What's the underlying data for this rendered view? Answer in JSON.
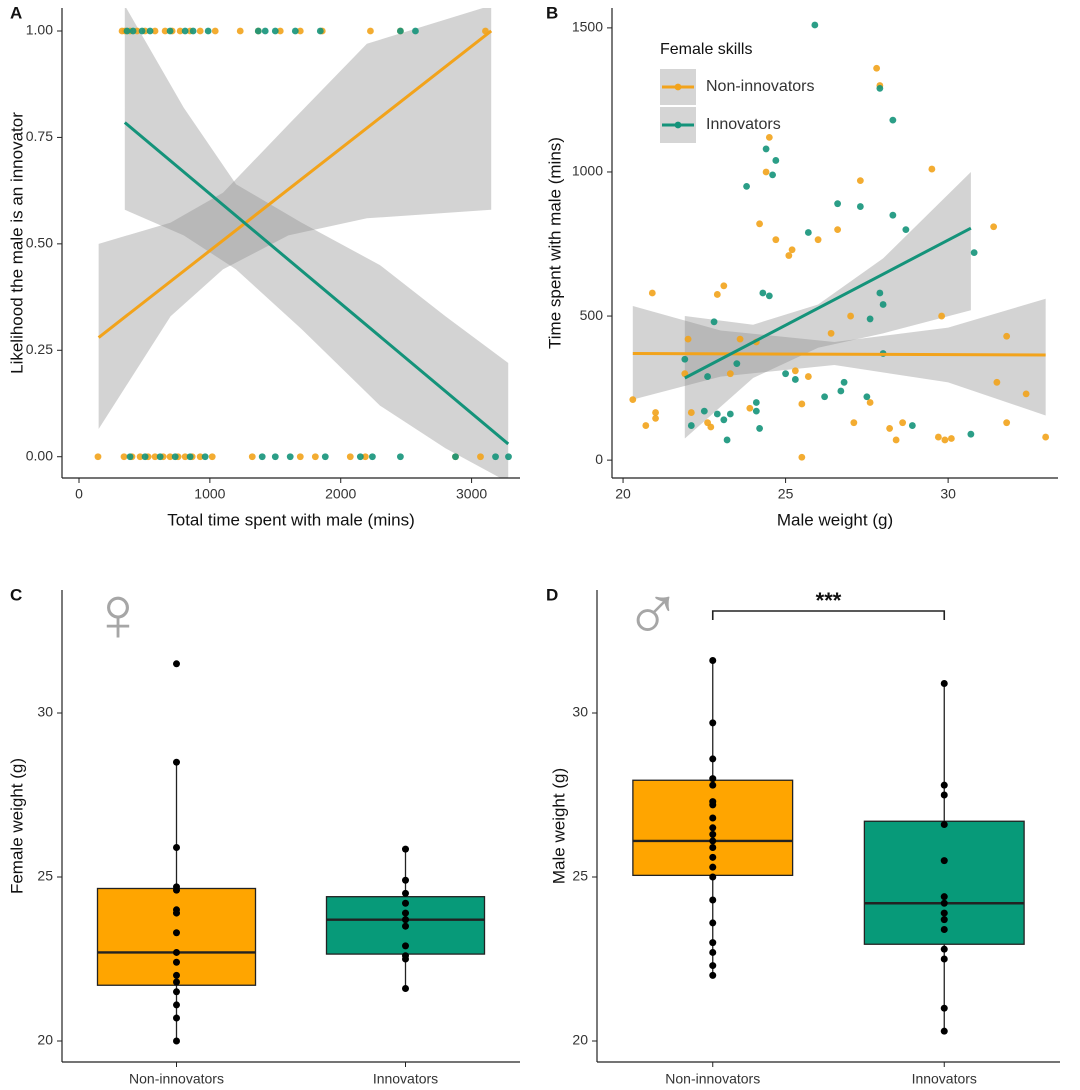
{
  "chart_data": [
    {
      "type": "scatter_fit",
      "panel_label": "A",
      "x_label": "Total time spent with male (mins)",
      "y_label": "Likelihood the male is an innovator",
      "xlim": [
        -130,
        3370
      ],
      "xticks": [
        0,
        1000,
        2000,
        3000
      ],
      "ylim": [
        -0.05,
        1.054
      ],
      "yticks": [
        {
          "value": 0,
          "label": "0.00"
        },
        {
          "value": 0.25,
          "label": "0.25"
        },
        {
          "value": 0.5,
          "label": "0.50"
        },
        {
          "value": 0.75,
          "label": "0.75"
        },
        {
          "value": 1,
          "label": "1.00"
        }
      ],
      "series": [
        {
          "color": "#f2a31b",
          "x": [
            329,
            352,
            390,
            444,
            505,
            581,
            658,
            712,
            773,
            849,
            926,
            1041,
            1232,
            1370,
            1538,
            1691,
            1859,
            2227,
            2456,
            3106,
            145,
            344,
            405,
            467,
            528,
            581,
            643,
            696,
            757,
            811,
            865,
            926,
            1018,
            1324,
            1691,
            1806,
            2073,
            2188,
            2877,
            3068
          ],
          "values": [
            1,
            1,
            1,
            1,
            1,
            1,
            1,
            1,
            1,
            1,
            1,
            1,
            1,
            1,
            1,
            1,
            1,
            1,
            1,
            1,
            0,
            0,
            0,
            0,
            0,
            0,
            0,
            0,
            0,
            0,
            0,
            0,
            0,
            0,
            0,
            0,
            0,
            0,
            0,
            0
          ],
          "fit": {
            "x": [
              150,
              3150
            ],
            "values": [
              0.28,
              1.0
            ]
          },
          "band": {
            "x": [
              150,
              700,
              1100,
              1600,
              2200,
              3150
            ],
            "lower": [
              0.065,
              0.33,
              0.44,
              0.52,
              0.56,
              0.58
            ],
            "upper": [
              0.5,
              0.55,
              0.62,
              0.78,
              0.97,
              1.06
            ]
          }
        },
        {
          "color": "#14937a",
          "x": [
            367,
            413,
            482,
            543,
            696,
            811,
            872,
            987,
            1370,
            1423,
            1500,
            1653,
            1844,
            2456,
            2571,
            390,
            505,
            620,
            735,
            849,
            964,
            1400,
            1500,
            1614,
            1882,
            2150,
            2242,
            2456,
            2877,
            3183,
            3282
          ],
          "values": [
            1,
            1,
            1,
            1,
            1,
            1,
            1,
            1,
            1,
            1,
            1,
            1,
            1,
            1,
            1,
            0,
            0,
            0,
            0,
            0,
            0,
            0,
            0,
            0,
            0,
            0,
            0,
            0,
            0,
            0,
            0
          ],
          "fit": {
            "x": [
              350,
              3280
            ],
            "values": [
              0.785,
              0.03
            ]
          },
          "band": {
            "x": [
              350,
              800,
              1200,
              1700,
              2300,
              2800,
              3280
            ],
            "lower": [
              0.58,
              0.52,
              0.44,
              0.3,
              0.12,
              0.02,
              -0.06
            ],
            "upper": [
              1.06,
              0.82,
              0.64,
              0.55,
              0.45,
              0.33,
              0.22
            ]
          }
        }
      ]
    },
    {
      "type": "scatter_fit",
      "panel_label": "B",
      "x_label": "Male weight (g)",
      "y_label": "Time spent with male (mins)",
      "xlim": [
        19.66,
        33.38
      ],
      "xticks": [
        20,
        25,
        30
      ],
      "ylim": [
        -62,
        1569
      ],
      "yticks": [
        0,
        500,
        1000,
        1500
      ],
      "legend_title": "Female skills",
      "series": [
        {
          "name": "Non-innovators",
          "color": "#f2a31b",
          "x": [
            20.3,
            20.7,
            21.0,
            21.0,
            20.9,
            21.9,
            22.0,
            22.1,
            22.7,
            22.6,
            22.9,
            23.1,
            23.3,
            23.6,
            23.9,
            24.1,
            24.2,
            24.4,
            24.5,
            24.7,
            25.1,
            25.2,
            25.3,
            25.5,
            25.5,
            25.7,
            26.0,
            26.4,
            26.6,
            27.0,
            27.1,
            27.3,
            27.6,
            27.8,
            27.9,
            28.2,
            28.4,
            28.6,
            29.5,
            29.8,
            29.7,
            29.9,
            30.1,
            31.4,
            31.5,
            31.8,
            32.4,
            33.0,
            31.8
          ],
          "values": [
            210,
            120,
            165,
            145,
            580,
            300,
            420,
            165,
            115,
            130,
            575,
            605,
            300,
            420,
            180,
            410,
            820,
            1000,
            1120,
            765,
            710,
            730,
            310,
            195,
            10,
            290,
            765,
            440,
            800,
            500,
            130,
            970,
            200,
            1360,
            1300,
            110,
            70,
            130,
            1010,
            500,
            80,
            70,
            75,
            810,
            270,
            130,
            230,
            80,
            430
          ],
          "fit": {
            "x": [
              20.3,
              33.0
            ],
            "values": [
              370,
              365
            ]
          },
          "band": {
            "x": [
              20.3,
              23,
              26.5,
              30,
              33.0
            ],
            "lower": [
              210,
              290,
              330,
              270,
              155
            ],
            "upper": [
              535,
              450,
              410,
              460,
              560
            ]
          }
        },
        {
          "name": "Innovators",
          "color": "#14937a",
          "x": [
            21.9,
            22.1,
            22.5,
            22.6,
            22.8,
            22.9,
            23.1,
            23.2,
            23.3,
            23.5,
            23.8,
            24.1,
            24.1,
            24.2,
            24.3,
            24.4,
            24.5,
            24.6,
            24.7,
            25.0,
            25.3,
            25.7,
            25.9,
            26.2,
            26.6,
            26.7,
            26.8,
            27.3,
            27.5,
            27.6,
            27.9,
            27.9,
            28.0,
            28.0,
            28.3,
            28.3,
            28.7,
            28.9,
            30.7,
            30.8
          ],
          "values": [
            350,
            120,
            170,
            290,
            480,
            160,
            140,
            70,
            160,
            335,
            950,
            170,
            200,
            110,
            580,
            1080,
            570,
            990,
            1040,
            300,
            280,
            790,
            1510,
            220,
            890,
            240,
            270,
            880,
            220,
            490,
            1290,
            580,
            540,
            370,
            850,
            1180,
            800,
            120,
            90,
            720
          ],
          "fit": {
            "x": [
              21.9,
              30.7
            ],
            "values": [
              285,
              805
            ]
          },
          "band": {
            "x": [
              21.9,
              24,
              26,
              28,
              30.7
            ],
            "lower": [
              75,
              285,
              390,
              440,
              520
            ],
            "upper": [
              500,
              470,
              540,
              700,
              1000
            ]
          }
        }
      ]
    },
    {
      "type": "box",
      "panel_label": "C",
      "symbol": "♀",
      "y_label": "Female weight (g)",
      "categories": [
        "Non-innovators",
        "Innovators"
      ],
      "ylim": [
        19.36,
        33.75
      ],
      "yticks": [
        20,
        25,
        30
      ],
      "boxes": [
        {
          "color": "#ffa500",
          "min": 20.0,
          "q1": 21.7,
          "median": 22.7,
          "q3": 24.65,
          "max": 28.5,
          "points": [
            31.5,
            28.5,
            25.9,
            24.7,
            24.6,
            24.0,
            23.9,
            23.3,
            22.7,
            22.4,
            22.0,
            21.8,
            21.5,
            21.1,
            20.7,
            20.0
          ]
        },
        {
          "color": "#079a79",
          "min": 21.6,
          "q1": 22.65,
          "median": 23.7,
          "q3": 24.4,
          "max": 25.85,
          "points": [
            25.85,
            24.9,
            24.5,
            24.2,
            23.9,
            23.7,
            23.5,
            22.9,
            22.6,
            22.5,
            21.6
          ]
        }
      ]
    },
    {
      "type": "box",
      "panel_label": "D",
      "symbol": "♂",
      "y_label": "Male weight (g)",
      "categories": [
        "Non-innovators",
        "Innovators"
      ],
      "ylim": [
        19.36,
        33.75
      ],
      "yticks": [
        20,
        25,
        30
      ],
      "significance": "***",
      "boxes": [
        {
          "color": "#ffa500",
          "min": 22.0,
          "q1": 25.05,
          "median": 26.1,
          "q3": 27.95,
          "max": 31.6,
          "points": [
            31.6,
            29.7,
            28.6,
            28.0,
            27.8,
            27.3,
            27.2,
            26.8,
            26.5,
            26.3,
            26.1,
            25.9,
            25.6,
            25.3,
            25.0,
            24.3,
            23.6,
            23.0,
            22.7,
            22.3,
            22.0
          ]
        },
        {
          "color": "#079a79",
          "min": 20.3,
          "q1": 22.95,
          "median": 24.2,
          "q3": 26.7,
          "max": 30.9,
          "points": [
            30.9,
            27.8,
            27.5,
            26.6,
            25.5,
            24.4,
            24.2,
            23.9,
            23.7,
            23.4,
            22.8,
            22.5,
            21.0,
            20.3
          ]
        }
      ]
    }
  ]
}
